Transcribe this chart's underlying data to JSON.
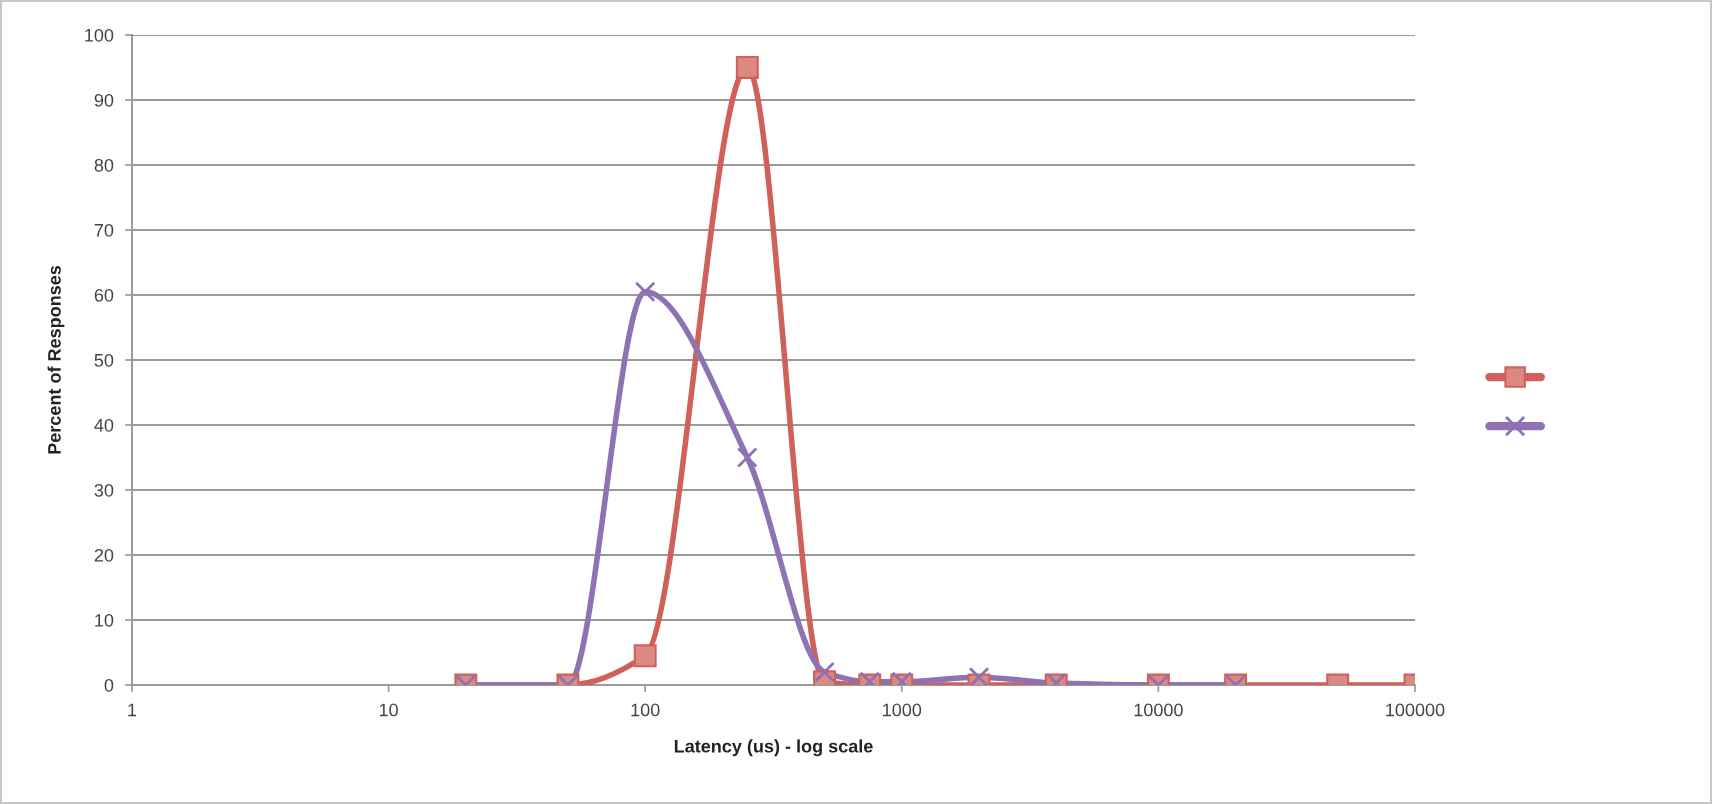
{
  "chart_data": {
    "type": "line",
    "xlabel": "Latency (us) - log scale",
    "ylabel": "Percent of Responses",
    "log": "x",
    "xlim": [
      1,
      100000
    ],
    "xticks": [
      1,
      10,
      100,
      1000,
      10000,
      100000
    ],
    "ylim": [
      0,
      100
    ],
    "yticks": [
      0,
      10,
      20,
      30,
      40,
      50,
      60,
      70,
      80,
      90,
      100
    ],
    "grid": "y",
    "line_style": "solid",
    "x": [
      20,
      50,
      100,
      250,
      500,
      750,
      1000,
      2000,
      4000,
      10000,
      20000,
      50000,
      100000
    ],
    "series": [
      {
        "color": "#d0605a",
        "marker": "square",
        "values": [
          0,
          0,
          4.5,
          95,
          0.5,
          0,
          0,
          0,
          0,
          0,
          0,
          0,
          0
        ]
      },
      {
        "color": "#8e72b4",
        "marker": "cross",
        "x": [
          20,
          50,
          100,
          250,
          500,
          750,
          1000,
          2000,
          4000,
          10000,
          20000
        ],
        "values": [
          0,
          0,
          60.5,
          35,
          2,
          0.5,
          0.5,
          1.2,
          0.3,
          0,
          0
        ]
      }
    ]
  }
}
